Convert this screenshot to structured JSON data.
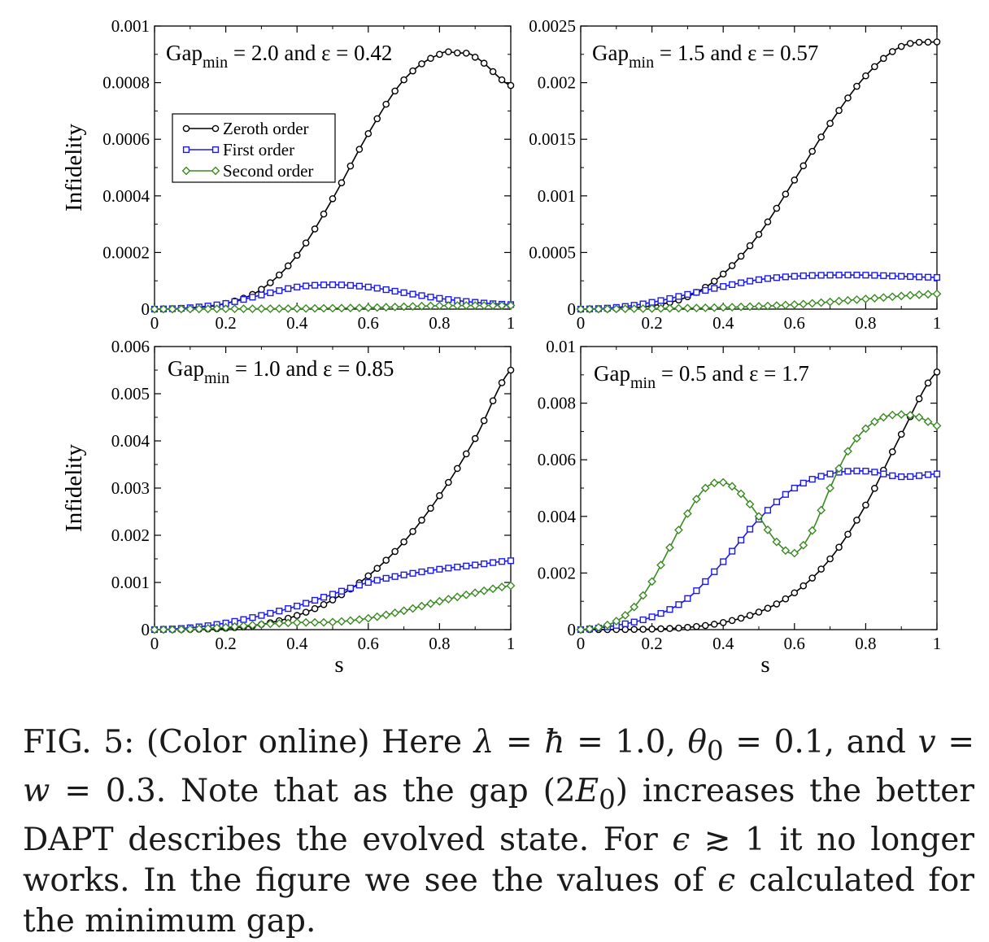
{
  "figure": {
    "ylabel": "Infidelity",
    "xlabel": "s",
    "legend": [
      "Zeroth order",
      "First order",
      "Second order"
    ],
    "series_colors": {
      "Zeroth order": "#000000",
      "First order": "#1a1aee",
      "Second order": "#3a8a22"
    }
  },
  "chart_data": [
    {
      "type": "line",
      "annotation": "Gap_min = 2.0 and ε = 0.42",
      "annotation_main": "Gap",
      "annotation_sub": "min",
      "annotation_rest": " = 2.0 and ε = 0.42",
      "xlim": [
        0,
        1
      ],
      "ylim": [
        0,
        0.001
      ],
      "yticks": [
        "0",
        "0.0002",
        "0.0004",
        "0.0006",
        "0.0008",
        "0.001"
      ],
      "xticks": [
        "0",
        "0.2",
        "0.4",
        "0.6",
        "0.8",
        "1"
      ],
      "ylabel": "Infidelity",
      "xlabel": "",
      "legend_position": "top-left",
      "series": [
        {
          "name": "Zeroth order",
          "color": "#000000",
          "marker": "circle",
          "x": [
            0,
            0.1,
            0.2,
            0.3,
            0.4,
            0.5,
            0.6,
            0.7,
            0.8,
            0.85,
            0.9,
            1.0
          ],
          "y": [
            0,
            3e-06,
            2e-05,
            7e-05,
            0.00019,
            0.00039,
            0.00062,
            0.00081,
            0.0009,
            0.000905,
            0.00089,
            0.00079
          ]
        },
        {
          "name": "First order",
          "color": "#1a1aee",
          "marker": "square",
          "x": [
            0,
            0.1,
            0.2,
            0.3,
            0.4,
            0.5,
            0.6,
            0.7,
            0.8,
            0.9,
            1.0
          ],
          "y": [
            0,
            5e-06,
            2e-05,
            5e-05,
            7.8e-05,
            8.6e-05,
            7.8e-05,
            5.8e-05,
            3.8e-05,
            2.4e-05,
            1.6e-05
          ]
        },
        {
          "name": "Second order",
          "color": "#3a8a22",
          "marker": "diamond",
          "x": [
            0,
            0.2,
            0.4,
            0.6,
            0.8,
            1.0
          ],
          "y": [
            0,
            1e-06,
            2e-06,
            5e-06,
            1.2e-05,
            1.3e-05
          ]
        }
      ]
    },
    {
      "type": "line",
      "annotation": "Gap_min = 1.5 and ε = 0.57",
      "annotation_main": "Gap",
      "annotation_sub": "min",
      "annotation_rest": " = 1.5 and ε = 0.57",
      "xlim": [
        0,
        1
      ],
      "ylim": [
        0,
        0.0025
      ],
      "yticks": [
        "0",
        "0.0005",
        "0.001",
        "0.0015",
        "0.002",
        "0.0025"
      ],
      "xticks": [
        "0",
        "0.2",
        "0.4",
        "0.6",
        "0.8",
        "1"
      ],
      "ylabel": "",
      "xlabel": "",
      "series": [
        {
          "name": "Zeroth order",
          "color": "#000000",
          "marker": "circle",
          "x": [
            0,
            0.1,
            0.2,
            0.3,
            0.4,
            0.5,
            0.6,
            0.7,
            0.8,
            0.9,
            1.0
          ],
          "y": [
            0,
            5e-06,
            3e-05,
            0.00011,
            0.00031,
            0.00066,
            0.00114,
            0.00164,
            0.00206,
            0.00232,
            0.00236
          ]
        },
        {
          "name": "First order",
          "color": "#1a1aee",
          "marker": "square",
          "x": [
            0,
            0.1,
            0.2,
            0.3,
            0.4,
            0.5,
            0.6,
            0.7,
            0.8,
            0.9,
            1.0
          ],
          "y": [
            0,
            1.5e-05,
            6e-05,
            0.00013,
            0.0002,
            0.00026,
            0.00029,
            0.0003,
            0.0003,
            0.00029,
            0.00028
          ]
        },
        {
          "name": "Second order",
          "color": "#3a8a22",
          "marker": "diamond",
          "x": [
            0,
            0.2,
            0.4,
            0.6,
            0.8,
            1.0
          ],
          "y": [
            0,
            5e-06,
            1.5e-05,
            4e-05,
            9e-05,
            0.000135
          ]
        }
      ]
    },
    {
      "type": "line",
      "annotation": "Gap_min = 1.0 and ε = 0.85",
      "annotation_main": "Gap",
      "annotation_sub": "min",
      "annotation_rest": " = 1.0 and ε = 0.85",
      "xlim": [
        0,
        1
      ],
      "ylim": [
        0,
        0.006
      ],
      "yticks": [
        "0",
        "0.001",
        "0.002",
        "0.003",
        "0.004",
        "0.005",
        "0.006"
      ],
      "xticks": [
        "0",
        "0.2",
        "0.4",
        "0.6",
        "0.8",
        "1"
      ],
      "ylabel": "Infidelity",
      "xlabel": "s",
      "series": [
        {
          "name": "Zeroth order",
          "color": "#000000",
          "marker": "circle",
          "x": [
            0,
            0.1,
            0.2,
            0.3,
            0.4,
            0.5,
            0.6,
            0.7,
            0.8,
            0.9,
            1.0
          ],
          "y": [
            0,
            5e-06,
            3e-05,
            0.00011,
            0.0003,
            0.00063,
            0.00114,
            0.00186,
            0.00284,
            0.00405,
            0.0055
          ]
        },
        {
          "name": "First order",
          "color": "#1a1aee",
          "marker": "square",
          "x": [
            0,
            0.1,
            0.2,
            0.3,
            0.4,
            0.5,
            0.6,
            0.7,
            0.8,
            0.9,
            1.0
          ],
          "y": [
            0,
            4e-05,
            0.00014,
            0.0003,
            0.0005,
            0.00075,
            0.001,
            0.00116,
            0.00128,
            0.00137,
            0.00146
          ]
        },
        {
          "name": "Second order",
          "color": "#3a8a22",
          "marker": "diamond",
          "x": [
            0,
            0.1,
            0.2,
            0.3,
            0.4,
            0.5,
            0.6,
            0.7,
            0.8,
            0.9,
            1.0
          ],
          "y": [
            0,
            1e-05,
            5e-05,
            0.00011,
            0.00015,
            0.00016,
            0.00024,
            0.0004,
            0.0006,
            0.00078,
            0.00093
          ]
        }
      ]
    },
    {
      "type": "line",
      "annotation": "Gap_min = 0.5 and ε = 1.7",
      "annotation_main": "Gap",
      "annotation_sub": "min",
      "annotation_rest": " = 0.5 and ε = 1.7",
      "xlim": [
        0,
        1
      ],
      "ylim": [
        0,
        0.01
      ],
      "yticks": [
        "0",
        "0.002",
        "0.004",
        "0.006",
        "0.008",
        "0.01"
      ],
      "xticks": [
        "0",
        "0.2",
        "0.4",
        "0.6",
        "0.8",
        "1"
      ],
      "ylabel": "",
      "xlabel": "s",
      "series": [
        {
          "name": "Zeroth order",
          "color": "#000000",
          "marker": "circle",
          "x": [
            0,
            0.1,
            0.2,
            0.3,
            0.4,
            0.5,
            0.6,
            0.7,
            0.8,
            0.9,
            1.0
          ],
          "y": [
            0,
            3e-06,
            2e-05,
            8e-05,
            0.00025,
            0.00062,
            0.0013,
            0.0025,
            0.0044,
            0.0069,
            0.0091
          ]
        },
        {
          "name": "First order",
          "color": "#1a1aee",
          "marker": "square",
          "x": [
            0,
            0.1,
            0.2,
            0.3,
            0.4,
            0.5,
            0.6,
            0.7,
            0.8,
            0.9,
            1.0
          ],
          "y": [
            0,
            0.00015,
            0.00045,
            0.0011,
            0.0024,
            0.0039,
            0.005,
            0.0055,
            0.0056,
            0.0054,
            0.0055
          ]
        },
        {
          "name": "Second order",
          "color": "#3a8a22",
          "marker": "diamond",
          "x": [
            0,
            0.05,
            0.1,
            0.15,
            0.2,
            0.25,
            0.3,
            0.35,
            0.4,
            0.45,
            0.5,
            0.55,
            0.6,
            0.65,
            0.7,
            0.75,
            0.8,
            0.85,
            0.9,
            0.95,
            1.0
          ],
          "y": [
            0,
            8e-05,
            0.0003,
            0.0008,
            0.0017,
            0.0029,
            0.0041,
            0.005,
            0.0052,
            0.0048,
            0.004,
            0.0031,
            0.0027,
            0.0035,
            0.005,
            0.0063,
            0.0071,
            0.0075,
            0.0076,
            0.0075,
            0.0072
          ]
        }
      ]
    }
  ],
  "caption": {
    "p1": "FIG. 5:  (Color online) Here ",
    "p2": "λ",
    "p3": " = ",
    "p4": "ħ",
    "p5": " = 1.0, ",
    "p6": "θ",
    "p6sub": "0",
    "p7": " = 0.1, and ",
    "p8": "v",
    "p9": " = ",
    "p10": "w",
    "p11": " = 0.3. Note that as the gap (2",
    "p12": "E",
    "p12sub": "0",
    "p13": ") increases the better DAPT describes the evolved state.  For ",
    "p14": "ϵ",
    "p15": " ≳ 1 it no longer works. In the figure we see the values of ",
    "p16": "ϵ",
    "p17": " calculated for the minimum gap."
  }
}
